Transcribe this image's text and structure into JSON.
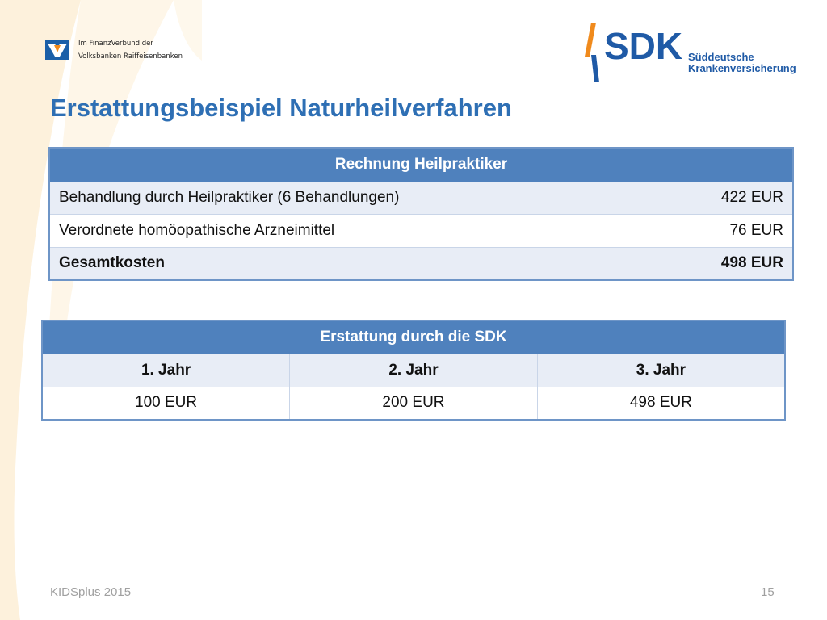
{
  "header": {
    "partner_line1": "Im FinanzVerbund der",
    "partner_line2": "Volksbanken Raiffeisenbanken",
    "sdk_word": "SDK",
    "sdk_sub1": "Süddeutsche",
    "sdk_sub2": "Krankenversicherung"
  },
  "title": "Erstattungsbeispiel Naturheilverfahren",
  "invoice": {
    "header": "Rechnung Heilpraktiker",
    "rows": [
      {
        "label": "Behandlung durch Heilpraktiker (6 Behandlungen)",
        "amount": "422 EUR"
      },
      {
        "label": "Verordnete homöopathische Arzneimittel",
        "amount": "76 EUR"
      },
      {
        "label": "Gesamtkosten",
        "amount": "498 EUR"
      }
    ]
  },
  "refund": {
    "header": "Erstattung durch die SDK",
    "years": [
      "1. Jahr",
      "2. Jahr",
      "3. Jahr"
    ],
    "amounts": [
      "100 EUR",
      "200 EUR",
      "498 EUR"
    ]
  },
  "footer": {
    "left": "KIDSplus 2015",
    "page_number": "15"
  },
  "colors": {
    "accent_blue": "#4f81bd",
    "title_blue": "#2e6fb4",
    "sdk_blue": "#1f5aa6",
    "sdk_orange": "#f08a1c",
    "swoosh": "#fdf3e1"
  }
}
